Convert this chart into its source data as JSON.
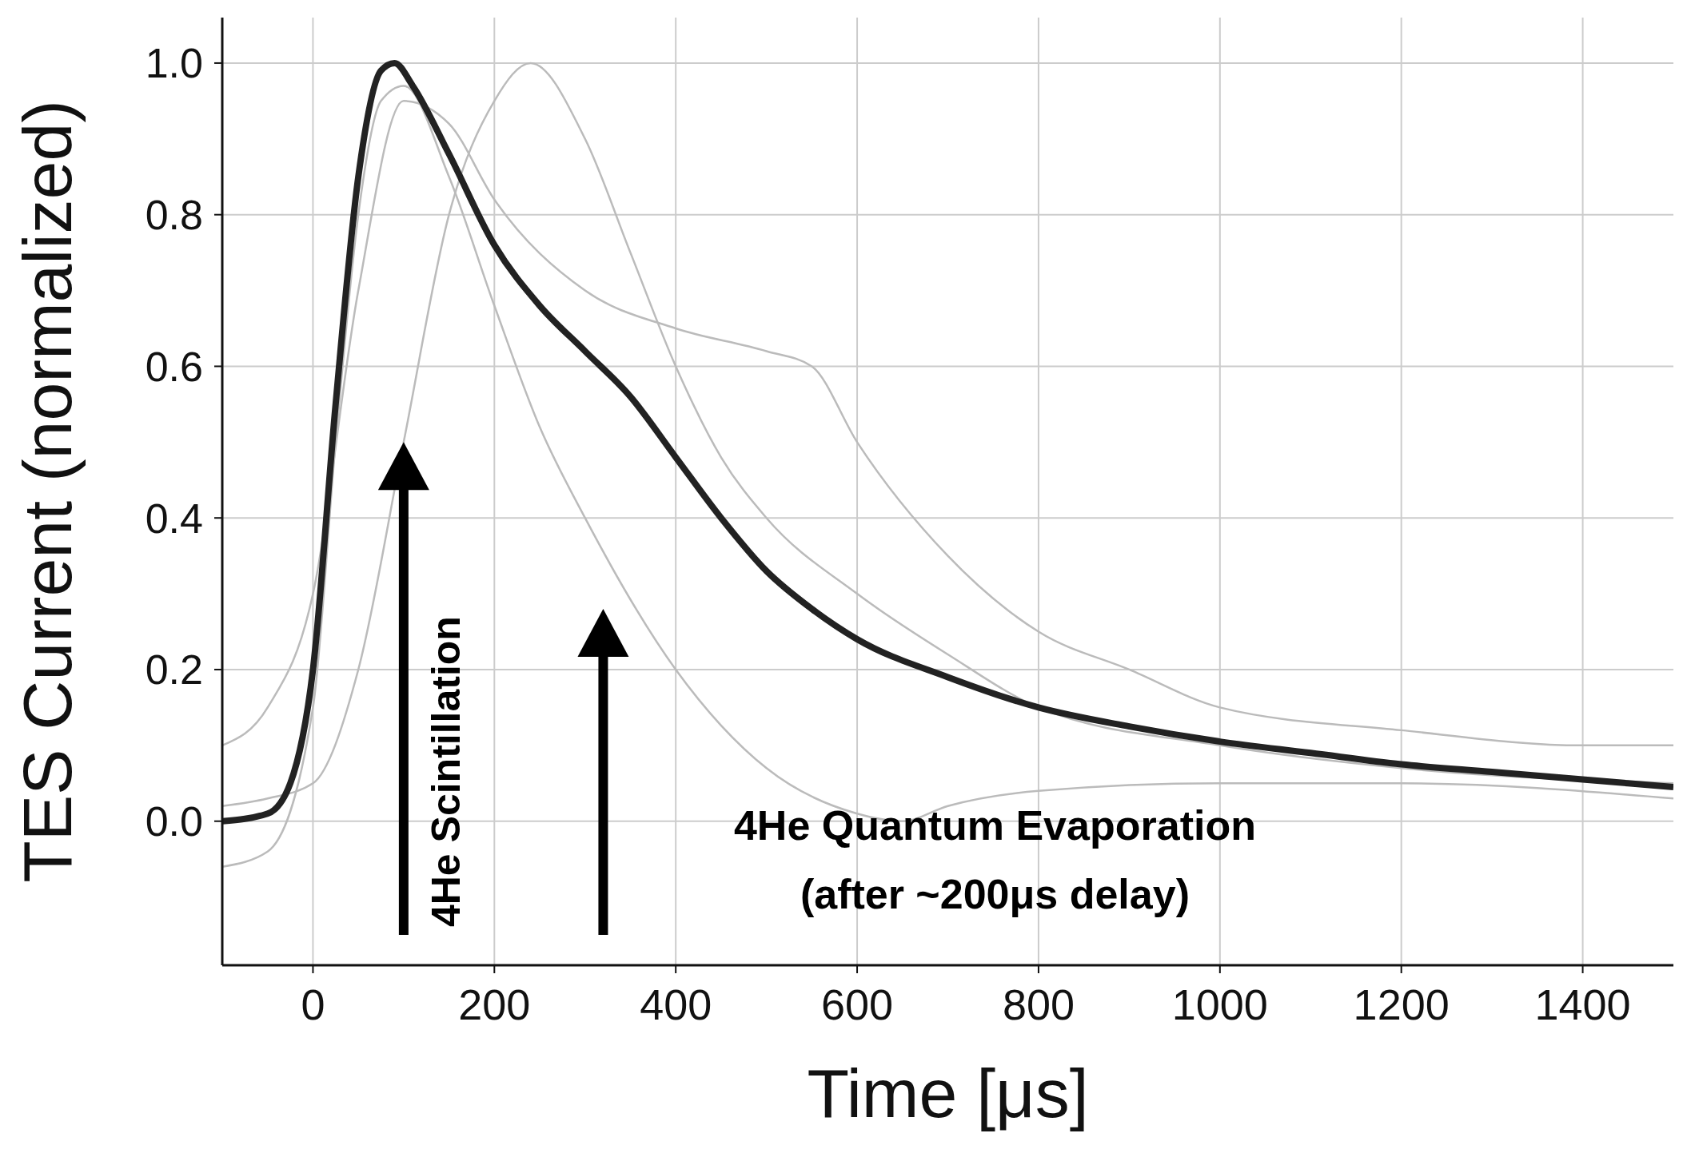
{
  "chart_data": {
    "type": "line",
    "xlabel": "Time [μs]",
    "ylabel": "TES Current (normalized)",
    "xlim": [
      -100,
      1500
    ],
    "ylim": [
      -0.19,
      1.06
    ],
    "xticks": [
      0,
      200,
      400,
      600,
      800,
      1000,
      1200,
      1400
    ],
    "yticks": [
      {
        "value": 0,
        "label": "0.0"
      },
      {
        "value": 0.2,
        "label": "0.2"
      },
      {
        "value": 0.4,
        "label": "0.4"
      },
      {
        "value": 0.6,
        "label": "0.6"
      },
      {
        "value": 0.8,
        "label": "0.8"
      },
      {
        "value": 1,
        "label": "1.0"
      }
    ],
    "grid": true,
    "marker": "none",
    "line_style": "solid",
    "series": [
      {
        "color": "#bbbbbb",
        "x": [
          -100,
          -50,
          0,
          50,
          100,
          150,
          200,
          240,
          300,
          350,
          400,
          450,
          500,
          600,
          700,
          800,
          1000,
          1200,
          1500
        ],
        "values": [
          0.02,
          0.03,
          0.05,
          0.2,
          0.5,
          0.8,
          0.95,
          1.0,
          0.9,
          0.75,
          0.6,
          0.48,
          0.4,
          0.3,
          0.22,
          0.15,
          0.1,
          0.07,
          0.05
        ]
      },
      {
        "color": "#bbbbbb",
        "x": [
          -100,
          -50,
          0,
          25,
          50,
          75,
          100,
          150,
          200,
          250,
          300,
          400,
          500,
          600,
          650,
          700,
          800,
          1000,
          1200,
          1500
        ],
        "values": [
          -0.06,
          -0.04,
          0.15,
          0.5,
          0.8,
          0.95,
          0.97,
          0.85,
          0.68,
          0.52,
          0.4,
          0.2,
          0.07,
          0.01,
          0.0,
          0.02,
          0.04,
          0.05,
          0.05,
          0.03
        ]
      },
      {
        "color": "#bbbbbb",
        "x": [
          -100,
          -50,
          0,
          50,
          100,
          150,
          200,
          300,
          400,
          500,
          550,
          600,
          700,
          800,
          900,
          1000,
          1200,
          1400,
          1500
        ],
        "values": [
          0.1,
          0.15,
          0.3,
          0.7,
          0.95,
          0.92,
          0.82,
          0.7,
          0.65,
          0.62,
          0.6,
          0.5,
          0.35,
          0.25,
          0.2,
          0.15,
          0.12,
          0.1,
          0.1
        ]
      },
      {
        "color": "#222222",
        "x": [
          -100,
          -50,
          -25,
          0,
          25,
          50,
          75,
          90,
          110,
          150,
          200,
          250,
          300,
          350,
          400,
          450,
          500,
          550,
          600,
          700,
          800,
          900,
          1000,
          1100,
          1200,
          1300,
          1400,
          1500
        ],
        "values": [
          0,
          0.01,
          0.05,
          0.2,
          0.55,
          0.85,
          0.99,
          1.0,
          0.97,
          0.88,
          0.76,
          0.68,
          0.62,
          0.56,
          0.48,
          0.4,
          0.33,
          0.28,
          0.24,
          0.19,
          0.15,
          0.125,
          0.105,
          0.09,
          0.075,
          0.065,
          0.055,
          0.045
        ]
      }
    ],
    "annotations": [
      "4He Scintillation",
      "4He Quantum Evaporation\n(after ~200μs delay)"
    ]
  }
}
